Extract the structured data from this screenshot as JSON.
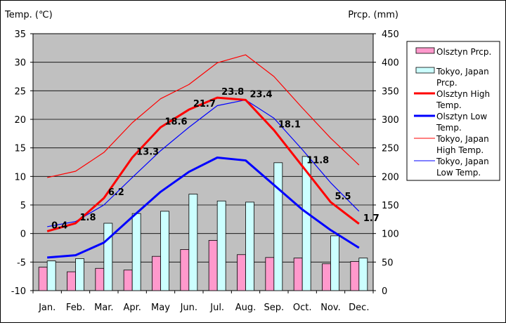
{
  "chart_data": {
    "type": "bar+line",
    "left_axis_title": "Temp. (℃)",
    "right_axis_title": "Prcp. (mm)",
    "left_ylim": [
      -10,
      35
    ],
    "right_ylim": [
      0,
      450
    ],
    "left_ticks": [
      "35",
      "30",
      "25",
      "20",
      "15",
      "10",
      "5",
      "0",
      "-5",
      "-10"
    ],
    "right_ticks": [
      "450",
      "400",
      "350",
      "300",
      "250",
      "200",
      "150",
      "100",
      "50",
      "0"
    ],
    "categories": [
      "Jan.",
      "Feb.",
      "Mar.",
      "Apr.",
      "May",
      "Jun.",
      "Jul.",
      "Aug.",
      "Sep.",
      "Oct.",
      "Nov.",
      "Dec."
    ],
    "plot_background": "#c0c0c0",
    "bar_series": [
      {
        "name": "Olsztyn Prcp.",
        "color": "#ff99cc",
        "values": [
          41,
          33,
          39,
          36,
          60,
          72,
          88,
          63,
          58,
          57,
          47,
          51
        ]
      },
      {
        "name": "Tokyo, Japan Prcp.",
        "color": "#ccffff",
        "values": [
          52,
          56,
          118,
          135,
          139,
          169,
          157,
          155,
          224,
          235,
          96,
          57
        ]
      }
    ],
    "line_series": [
      {
        "name": "Olsztyn High Temp.",
        "color": "#ff0000",
        "width": "thick",
        "values": [
          0.4,
          1.8,
          6.2,
          13.3,
          18.6,
          21.7,
          23.8,
          23.4,
          18.1,
          11.8,
          5.5,
          1.7
        ],
        "labels": [
          "0.4",
          "1.8",
          "6.2",
          "13.3",
          "18.6",
          "21.7",
          "23.8",
          "23.4",
          "18.1",
          "11.8",
          "5.5",
          "1.7"
        ]
      },
      {
        "name": "Olsztyn Low Temp.",
        "color": "#0000ff",
        "width": "thick",
        "values": [
          -4.2,
          -3.8,
          -1.6,
          2.9,
          7.3,
          10.8,
          13.3,
          12.8,
          8.5,
          4.2,
          0.6,
          -2.5
        ]
      },
      {
        "name": "Tokyo, Japan High Temp.",
        "color": "#ff0000",
        "width": "thin",
        "values": [
          9.8,
          10.9,
          14.2,
          19.4,
          23.6,
          26.1,
          29.9,
          31.3,
          27.5,
          22,
          16.7,
          12
        ]
      },
      {
        "name": "Tokyo, Japan Low Temp.",
        "color": "#0000ff",
        "width": "thin",
        "values": [
          1.2,
          2.1,
          5,
          9.8,
          14.5,
          18.6,
          22.4,
          23.4,
          20.2,
          14.7,
          8.9,
          3.9
        ]
      }
    ],
    "legend": {
      "placement": "right",
      "entries": [
        {
          "lines": [
            "Olsztyn Prcp."
          ]
        },
        {
          "lines": [
            "Tokyo, Japan",
            "Prcp."
          ]
        },
        {
          "lines": [
            "Olsztyn High",
            "Temp."
          ]
        },
        {
          "lines": [
            "Olsztyn Low",
            "Temp."
          ]
        },
        {
          "lines": [
            "Tokyo, Japan",
            "High Temp."
          ]
        },
        {
          "lines": [
            "Tokyo, Japan",
            "Low Temp."
          ]
        }
      ]
    },
    "grid": "horizontal"
  }
}
